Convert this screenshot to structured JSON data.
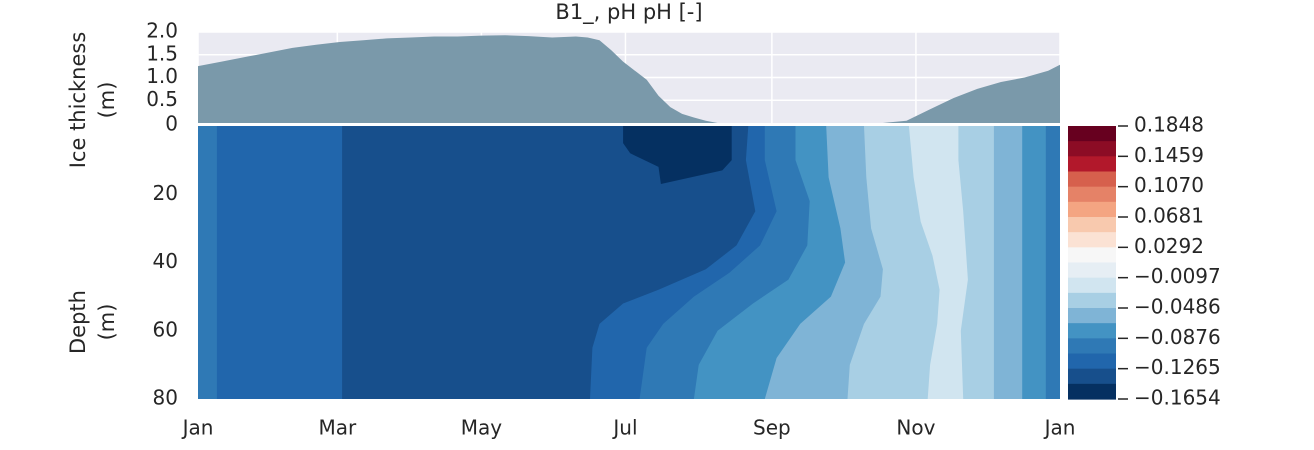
{
  "chart_data": [
    {
      "type": "area",
      "title": "B1_, pH pH [-]",
      "ylabel": "Ice thickness\n(m)",
      "ylim": [
        0,
        2.0
      ],
      "y_ticks": [
        "2.0",
        "1.5",
        "1.0",
        "0.5",
        "0"
      ],
      "x_ticks": [
        "Jan",
        "Mar",
        "May",
        "Jul",
        "Sep",
        "Nov",
        "Jan"
      ],
      "grid": true,
      "fill_color": "#7a99aa",
      "background_color": "#eaeaf2",
      "series": [
        {
          "x": [
            0,
            10,
            20,
            30,
            40,
            50,
            60,
            70,
            80,
            90,
            100,
            110,
            120,
            130,
            140,
            150,
            160,
            165,
            170,
            175,
            180,
            185,
            190,
            195,
            200,
            205,
            210,
            215,
            220,
            225,
            230,
            235,
            240,
            250,
            260,
            270,
            280,
            290,
            300,
            310,
            320,
            330,
            340,
            350,
            360,
            365
          ],
          "values": [
            1.25,
            1.35,
            1.45,
            1.55,
            1.65,
            1.72,
            1.78,
            1.82,
            1.86,
            1.88,
            1.9,
            1.9,
            1.92,
            1.93,
            1.91,
            1.88,
            1.9,
            1.88,
            1.82,
            1.6,
            1.35,
            1.15,
            0.95,
            0.6,
            0.35,
            0.2,
            0.12,
            0.05,
            0.0,
            0.0,
            0.0,
            0.0,
            0.0,
            0.0,
            0.0,
            0.0,
            0.0,
            0.0,
            0.05,
            0.3,
            0.55,
            0.75,
            0.9,
            1.0,
            1.15,
            1.28
          ]
        }
      ]
    },
    {
      "type": "heatmap",
      "ylabel": "Depth\n(m)",
      "ylim": [
        80,
        0
      ],
      "y_ticks": [
        "20",
        "40",
        "60",
        "80"
      ],
      "x_ticks": [
        "Jan",
        "Mar",
        "May",
        "Jul",
        "Sep",
        "Nov",
        "Jan"
      ],
      "colorbar_ticks": [
        "0.1848",
        "0.1459",
        "0.1070",
        "0.0681",
        "0.0292",
        "−0.0097",
        "−0.0486",
        "−0.0876",
        "−0.1265",
        "−0.1654"
      ],
      "colorbar_levels": [
        "#67001f",
        "#8c0c25",
        "#b2182b",
        "#d6604d",
        "#e58267",
        "#f4a582",
        "#f8c9ae",
        "#fbe2d4",
        "#f7f7f7",
        "#e6eef4",
        "#d1e5f0",
        "#a8cfe4",
        "#7fb4d6",
        "#4393c3",
        "#2f79b5",
        "#2166ac",
        "#174f8c",
        "#053061"
      ],
      "bands": [
        {
          "color": "#2f79b5",
          "boundary": [
            [
              -1,
              0
            ],
            [
              -1,
              80
            ]
          ]
        },
        {
          "color": "#2166ac",
          "boundary": [
            [
              8,
              0
            ],
            [
              8,
              80
            ]
          ]
        },
        {
          "color": "#174f8c",
          "boundary": [
            [
              61,
              0
            ],
            [
              61,
              80
            ]
          ]
        },
        {
          "color": "#2166ac",
          "boundary": [
            [
              233,
              0
            ],
            [
              232,
              10
            ],
            [
              236,
              25
            ],
            [
              228,
              35
            ],
            [
              215,
              42
            ],
            [
              195,
              48
            ],
            [
              180,
              52
            ],
            [
              170,
              58
            ],
            [
              167,
              65
            ],
            [
              166,
              80
            ]
          ]
        },
        {
          "color": "#2f79b5",
          "boundary": [
            [
              240,
              0
            ],
            [
              240,
              10
            ],
            [
              245,
              25
            ],
            [
              238,
              35
            ],
            [
              225,
              43
            ],
            [
              210,
              50
            ],
            [
              197,
              58
            ],
            [
              190,
              65
            ],
            [
              187,
              80
            ]
          ]
        },
        {
          "color": "#4393c3",
          "boundary": [
            [
              253,
              0
            ],
            [
              253,
              10
            ],
            [
              259,
              22
            ],
            [
              258,
              35
            ],
            [
              250,
              45
            ],
            [
              235,
              52
            ],
            [
              220,
              60
            ],
            [
              212,
              70
            ],
            [
              210,
              80
            ]
          ]
        },
        {
          "color": "#7fb4d6",
          "boundary": [
            [
              266,
              0
            ],
            [
              267,
              15
            ],
            [
              272,
              30
            ],
            [
              274,
              40
            ],
            [
              268,
              50
            ],
            [
              255,
              58
            ],
            [
              245,
              68
            ],
            [
              240,
              80
            ]
          ]
        },
        {
          "color": "#a8cfe4",
          "boundary": [
            [
              282,
              0
            ],
            [
              283,
              15
            ],
            [
              285,
              30
            ],
            [
              290,
              42
            ],
            [
              289,
              50
            ],
            [
              282,
              58
            ],
            [
              276,
              70
            ],
            [
              275,
              80
            ]
          ]
        },
        {
          "color": "#d1e5f0",
          "boundary": [
            [
              301,
              0
            ],
            [
              303,
              15
            ],
            [
              306,
              28
            ],
            [
              311,
              38
            ],
            [
              314,
              48
            ],
            [
              313,
              58
            ],
            [
              310,
              70
            ],
            [
              309,
              80
            ]
          ]
        },
        {
          "color": "#a8cfe4",
          "boundary": [
            [
              322,
              0
            ],
            [
              322,
              10
            ],
            [
              324,
              25
            ],
            [
              326,
              45
            ],
            [
              323,
              60
            ],
            [
              324,
              80
            ]
          ]
        },
        {
          "color": "#7fb4d6",
          "boundary": [
            [
              337,
              0
            ],
            [
              337,
              80
            ]
          ]
        },
        {
          "color": "#4393c3",
          "boundary": [
            [
              349,
              0
            ],
            [
              349,
              80
            ]
          ]
        },
        {
          "color": "#2f79b5",
          "boundary": [
            [
              359,
              0
            ],
            [
              359,
              80
            ]
          ]
        }
      ],
      "blobs": [
        {
          "color": "#053061",
          "points": [
            [
              180,
              0
            ],
            [
              226,
              0
            ],
            [
              226,
              10
            ],
            [
              222,
              13
            ],
            [
              196,
              17
            ],
            [
              195,
              12
            ],
            [
              183,
              8
            ],
            [
              180,
              5
            ]
          ]
        }
      ]
    }
  ]
}
